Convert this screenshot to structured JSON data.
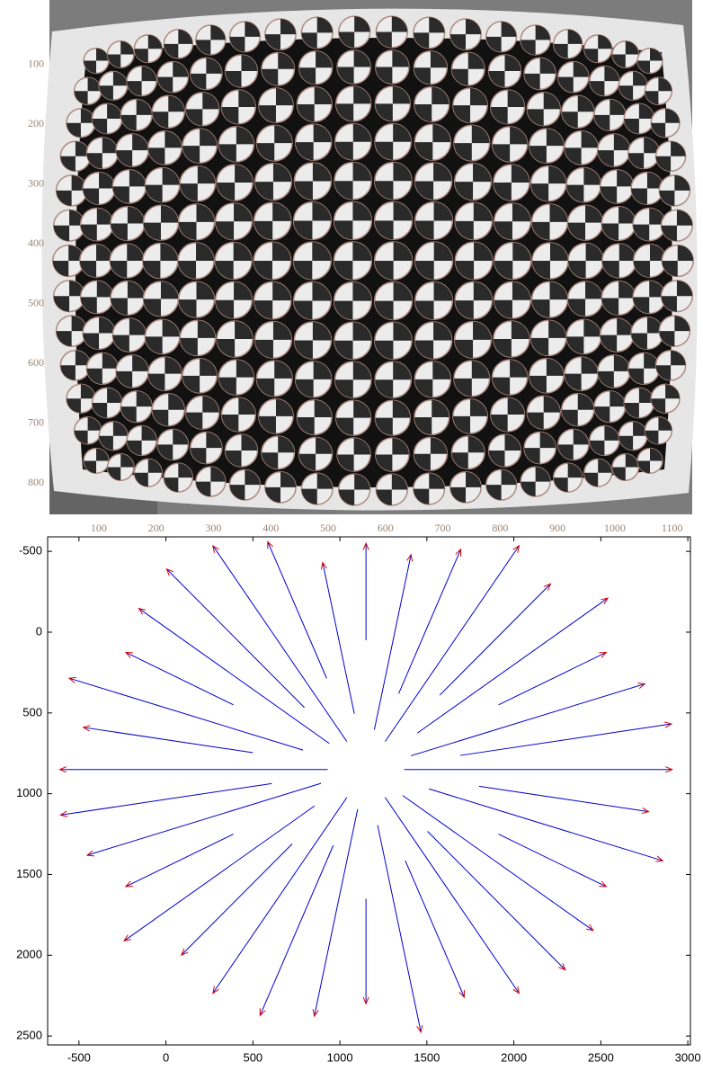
{
  "chart_data": [
    {
      "type": "image",
      "xlim": [
        14,
        1135
      ],
      "ylim": [
        852,
        -8
      ],
      "xticks": [
        100,
        200,
        300,
        400,
        500,
        600,
        700,
        800,
        900,
        1000,
        1100
      ],
      "yticks": [
        100,
        200,
        300,
        400,
        500,
        600,
        700,
        800
      ]
    },
    {
      "type": "quiver",
      "xlim": [
        -680,
        3015
      ],
      "ylim": [
        2555,
        -590
      ],
      "xticks": [
        -500,
        0,
        500,
        1000,
        1500,
        2000,
        2500,
        3000
      ],
      "yticks": [
        -500,
        0,
        500,
        1000,
        1500,
        2000,
        2500
      ],
      "shaft_color": "#0000cc",
      "head_color": "#dd0000",
      "x": [
        1370,
        1800,
        1512,
        1912,
        1361,
        1504,
        1260,
        1376,
        1217,
        1150,
        1102,
        962,
        1040,
        726,
        855,
        388,
        891,
        608,
        930,
        500,
        788,
        388,
        939,
        796,
        1040,
        924,
        1083,
        1150,
        1198,
        1338,
        1260,
        1574,
        1445,
        1912,
        1409,
        1692
      ],
      "y": [
        850,
        954,
        970,
        1250,
        1011,
        1233,
        1023,
        1414,
        1195,
        1650,
        1096,
        1320,
        1023,
        1310,
        1075,
        1250,
        936,
        937,
        850,
        746,
        730,
        450,
        689,
        467,
        677,
        286,
        505,
        50,
        604,
        380,
        677,
        390,
        625,
        450,
        765,
        763
      ],
      "u": [
        1540,
        975,
        1344,
        619,
        1095,
        792,
        770,
        339,
        249,
        0,
        -249,
        -421,
        -770,
        -637,
        -1095,
        -619,
        -1344,
        -1214,
        -1540,
        -975,
        -1344,
        -619,
        -1095,
        -792,
        -770,
        -339,
        -182,
        0,
        211,
        357,
        770,
        637,
        1095,
        619,
        1344,
        1214
      ],
      "v": [
        0,
        157,
        445,
        325,
        836,
        858,
        1212,
        846,
        1281,
        650,
        1281,
        1053,
        1212,
        689,
        836,
        325,
        445,
        195,
        0,
        -157,
        -445,
        -325,
        -836,
        -858,
        -1212,
        -846,
        -936,
        -600,
        -1084,
        -893,
        -1212,
        -689,
        -836,
        -325,
        -445,
        -195
      ]
    }
  ]
}
